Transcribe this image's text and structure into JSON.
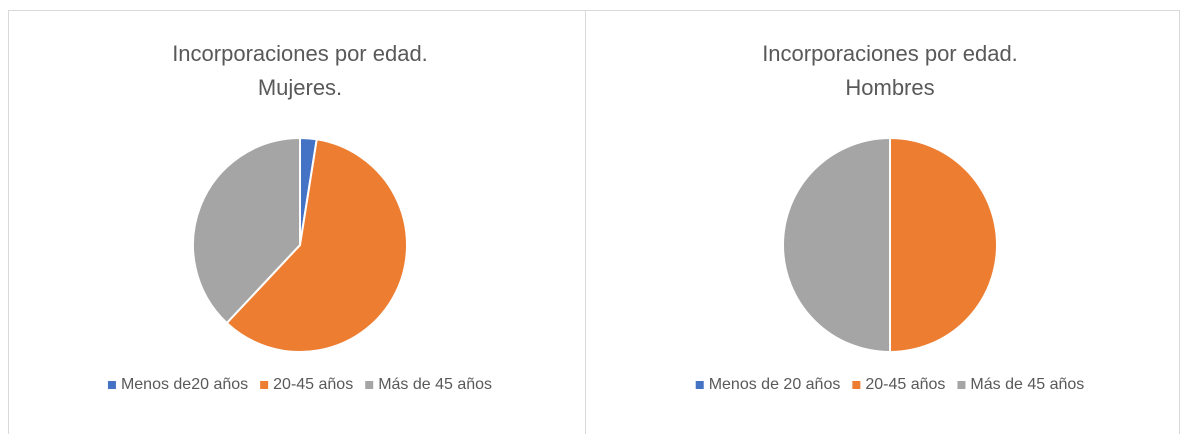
{
  "chart_data": [
    {
      "type": "pie",
      "title": [
        "Incorporaciones por edad.",
        "Mujeres."
      ],
      "categories": [
        "Menos de20 años",
        "20-45 años",
        "Más de 45 años"
      ],
      "values": [
        2.5,
        59.5,
        38
      ],
      "colors": [
        "#4472c4",
        "#ed7d31",
        "#a5a5a5"
      ],
      "legend": "bottom"
    },
    {
      "type": "pie",
      "title": [
        "Incorporaciones por edad.",
        "Hombres"
      ],
      "categories": [
        "Menos de 20 años",
        "20-45 años",
        "Más de 45 años"
      ],
      "values": [
        0,
        50,
        50
      ],
      "colors": [
        "#4472c4",
        "#ed7d31",
        "#a5a5a5"
      ],
      "legend": "bottom"
    }
  ]
}
